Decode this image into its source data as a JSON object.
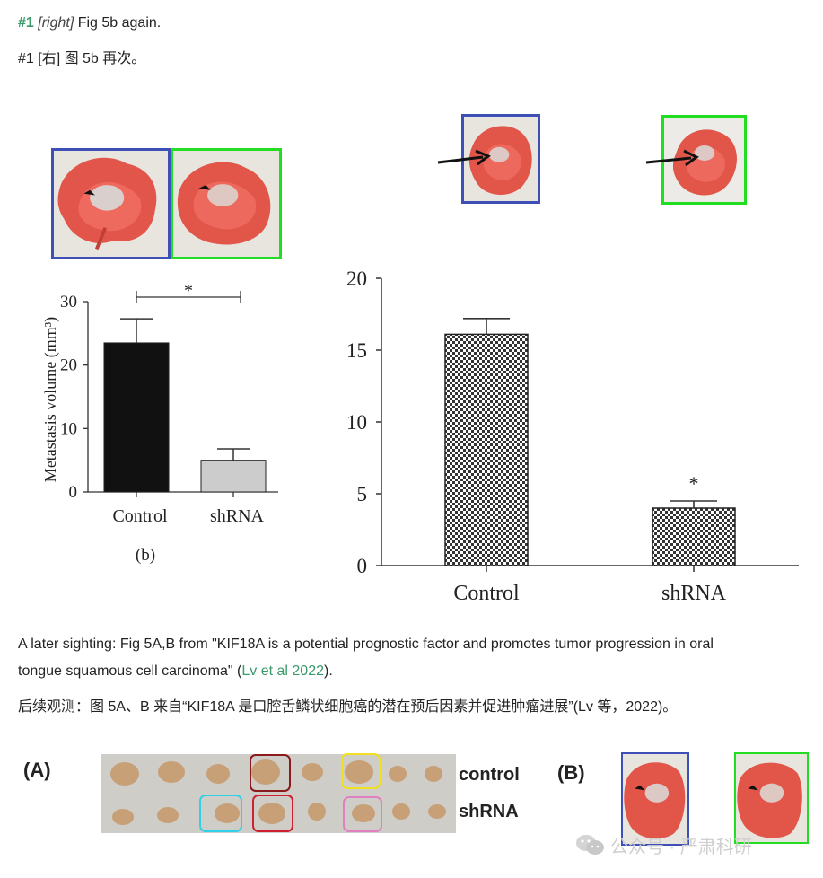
{
  "post": {
    "number": "#1",
    "tag": "[right]",
    "line1_rest": "Fig 5b again.",
    "line2": "#1 [右] 图 5b 再次。",
    "para_en_a": "A later sighting: Fig 5A,B from \"KIF18A is a potential prognostic factor and promotes tumor progression in oral",
    "para_en_b": "tongue squamous cell carcinoma\" (",
    "para_en_link": "Lv et al 2022",
    "para_en_c": ").",
    "para_zh": "后续观测：图 5A、B 来自“KIF18A 是口腔舌鳞状细胞癌的潜在预后因素并促进肿瘤进展”(Lv 等，2022)。"
  },
  "colors": {
    "accent_green": "#3a9a6a",
    "box_blue": "#3f4fb8",
    "box_green": "#22dd22",
    "bar_black": "#111111",
    "bar_gray": "#cccccc"
  },
  "chart_data": [
    {
      "type": "bar",
      "panel_label": "(b)",
      "categories": [
        "Control",
        "shRNA"
      ],
      "values": [
        23.5,
        5
      ],
      "errors": [
        3.8,
        1.8
      ],
      "ylabel": "Metastasis volume (mm³)",
      "ylim": [
        0,
        30
      ],
      "yticks": [
        0,
        10,
        20,
        30
      ],
      "annotation": "*",
      "bar_colors": [
        "#111111",
        "#cccccc"
      ]
    },
    {
      "type": "bar",
      "categories": [
        "Control",
        "shRNA"
      ],
      "values": [
        16.1,
        4.0
      ],
      "errors": [
        1.1,
        0.5
      ],
      "ylim": [
        0,
        20
      ],
      "yticks": [
        0,
        5,
        10,
        15,
        20
      ],
      "annotation": "*",
      "pattern": "checkerboard"
    }
  ],
  "bottom_figure": {
    "label_a": "(A)",
    "label_b": "(B)",
    "row_labels": [
      "control",
      "shRNA"
    ],
    "ring_colors": [
      "#8b1a1a",
      "#f0e020",
      "#30d0e8",
      "#d02030",
      "#e080c0"
    ]
  },
  "watermark": {
    "icon": "wechat-icon",
    "text": "公众号 · 严肃科研"
  }
}
